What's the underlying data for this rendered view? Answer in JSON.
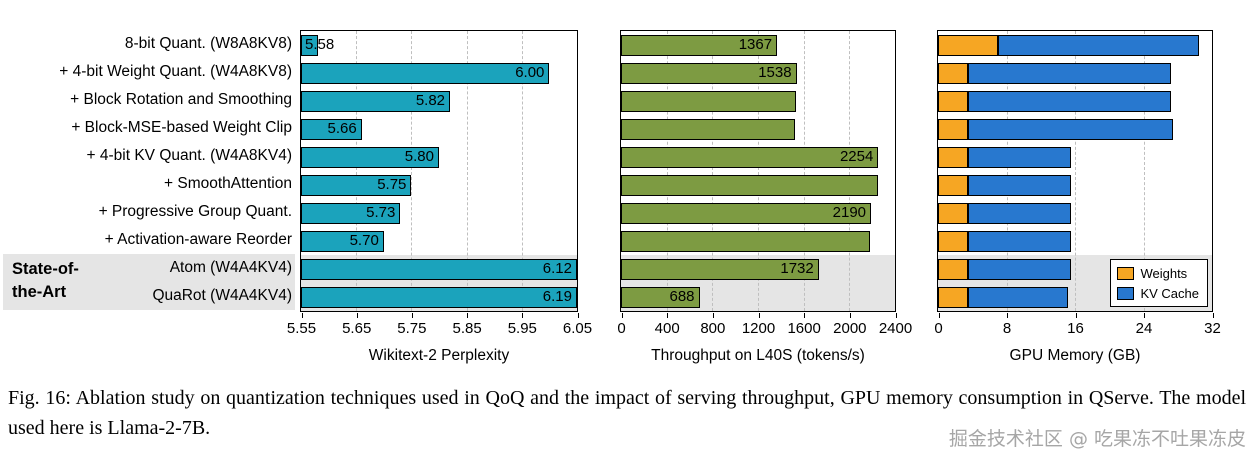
{
  "figure": {
    "caption": "Fig. 16: Ablation study on quantization techniques used in QoQ and the impact of serving throughput, GPU memory consumption in QServe. The model used here is Llama-2-7B.",
    "watermark": "掘金技术社区 @ 吃果冻不吐果冻皮"
  },
  "sota": {
    "line1": "State-of-",
    "line2": "the-Art"
  },
  "categories": [
    "8-bit Quant. (W8A8KV8)",
    "+ 4-bit Weight Quant. (W4A8KV8)",
    "+ Block Rotation and Smoothing",
    "+ Block-MSE-based Weight Clip",
    "+ 4-bit KV Quant. (W4A8KV4)",
    "+ SmoothAttention",
    "+ Progressive Group Quant.",
    "+ Activation-aware Reorder",
    "Atom (W4A4KV4)",
    "QuaRot (W4A4KV4)"
  ],
  "chart_data": [
    {
      "type": "bar",
      "orientation": "horizontal",
      "xlabel": "Wikitext-2 Perplexity",
      "xlim": [
        5.55,
        6.05
      ],
      "ticks": [
        5.55,
        5.65,
        5.75,
        5.85,
        5.95,
        6.05
      ],
      "tick_labels": [
        "5.55",
        "5.65",
        "5.75",
        "5.85",
        "5.95",
        "6.05"
      ],
      "bar_color": "#1ba3bc",
      "values": [
        5.58,
        6.0,
        5.82,
        5.66,
        5.8,
        5.75,
        5.73,
        5.7,
        6.12,
        6.19
      ],
      "labels": [
        "5.58",
        "6.00",
        "5.82",
        "5.66",
        "5.80",
        "5.75",
        "5.73",
        "5.70",
        "6.12",
        "6.19"
      ],
      "note": "bars clipped at axis max 6.05; grid on; highlighted state-of-the-art rows 9-10"
    },
    {
      "type": "bar",
      "orientation": "horizontal",
      "xlabel": "Throughput on L40S (tokens/s)",
      "xlim": [
        0,
        2400
      ],
      "ticks": [
        0,
        400,
        800,
        1200,
        1600,
        2000,
        2400
      ],
      "tick_labels": [
        "0",
        "400",
        "800",
        "1200",
        "1600",
        "2000",
        "2400"
      ],
      "bar_color": "#7d9b42",
      "values": [
        1367,
        1538,
        1532,
        1527,
        2254,
        2250,
        2190,
        2180,
        1732,
        688
      ],
      "labels": [
        "1367",
        "1538",
        "",
        "",
        "2254",
        "",
        "2190",
        "",
        "1732",
        "688"
      ],
      "note": "grid on; only some bars carry value labels"
    },
    {
      "type": "stacked_bar",
      "orientation": "horizontal",
      "xlabel": "GPU Memory (GB)",
      "xlim": [
        0,
        32
      ],
      "ticks": [
        0,
        8,
        16,
        24,
        32
      ],
      "tick_labels": [
        "0",
        "8",
        "16",
        "24",
        "32"
      ],
      "legend_position": "lower right",
      "series": [
        {
          "name": "Weights",
          "color": "#f6a623",
          "values": [
            7.0,
            3.5,
            3.5,
            3.5,
            3.5,
            3.5,
            3.5,
            3.5,
            3.5,
            3.5
          ]
        },
        {
          "name": "KV Cache",
          "color": "#2878cf",
          "values": [
            23.5,
            23.7,
            23.7,
            23.9,
            12.0,
            12.0,
            12.0,
            12.0,
            12.0,
            11.7
          ]
        }
      ],
      "note": "grid on; stacked horizontal bars, no value labels"
    }
  ]
}
